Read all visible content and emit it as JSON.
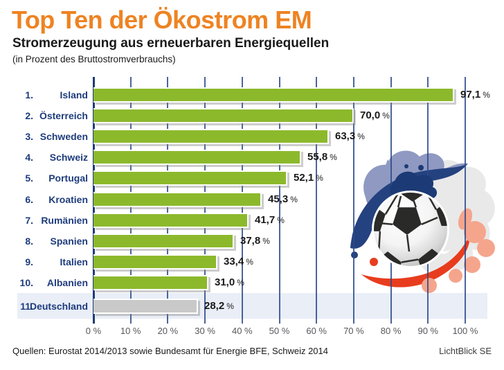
{
  "header": {
    "title": "Top Ten der Ökostrom EM",
    "subtitle": "Stromerzeugung aus erneuerbaren Energiequellen",
    "note": "(in Prozent des Bruttostromverbrauchs)"
  },
  "chart_data": {
    "type": "bar",
    "orientation": "horizontal",
    "title": "Top Ten der Ökostrom EM",
    "subtitle": "Stromerzeugung aus erneuerbaren Energiequellen",
    "unit": "%",
    "xlim": [
      0,
      100
    ],
    "x_tick_step": 10,
    "x_tick_labels": [
      "0 %",
      "10 %",
      "20 %",
      "30 %",
      "40 %",
      "50 %",
      "60 %",
      "70 %",
      "80 %",
      "90 %",
      "100 %"
    ],
    "grid": true,
    "legend": "none",
    "rows": [
      {
        "rank": "1.",
        "country": "Island",
        "value": 97.1,
        "label": "97,1",
        "highlight": false
      },
      {
        "rank": "2.",
        "country": "Österreich",
        "value": 70.0,
        "label": "70,0",
        "highlight": false
      },
      {
        "rank": "3.",
        "country": "Schweden",
        "value": 63.3,
        "label": "63,3",
        "highlight": false
      },
      {
        "rank": "4.",
        "country": "Schweiz",
        "value": 55.8,
        "label": "55,8",
        "highlight": false
      },
      {
        "rank": "5.",
        "country": "Portugal",
        "value": 52.1,
        "label": "52,1",
        "highlight": false
      },
      {
        "rank": "6.",
        "country": "Kroatien",
        "value": 45.3,
        "label": "45,3",
        "highlight": false
      },
      {
        "rank": "7.",
        "country": "Rumänien",
        "value": 41.7,
        "label": "41,7",
        "highlight": false
      },
      {
        "rank": "8.",
        "country": "Spanien",
        "value": 37.8,
        "label": "37,8",
        "highlight": false
      },
      {
        "rank": "9.",
        "country": "Italien",
        "value": 33.4,
        "label": "33,4",
        "highlight": false
      },
      {
        "rank": "10.",
        "country": "Albanien",
        "value": 31.0,
        "label": "31,0",
        "highlight": false
      },
      {
        "rank": "11.",
        "country": "Deutschland",
        "value": 28.2,
        "label": "28,2",
        "highlight": true
      }
    ],
    "colors": {
      "bar": "#8CB92C",
      "highlight_bar": "#C9C9C9",
      "highlight_band": "#E9EEF7",
      "grid": "#2C498A",
      "axis": "#1D3B77",
      "row_label": "#1E3C7C",
      "title": "#EE8322"
    }
  },
  "footer": {
    "source": "Quellen: Eurostat 2014/2013 sowie Bundesamt für Energie BFE, Schweiz 2014",
    "brand": "LichtBlick SE"
  },
  "decoration": {
    "icons": [
      "soccer-ball-icon",
      "paint-splash-icon"
    ]
  }
}
